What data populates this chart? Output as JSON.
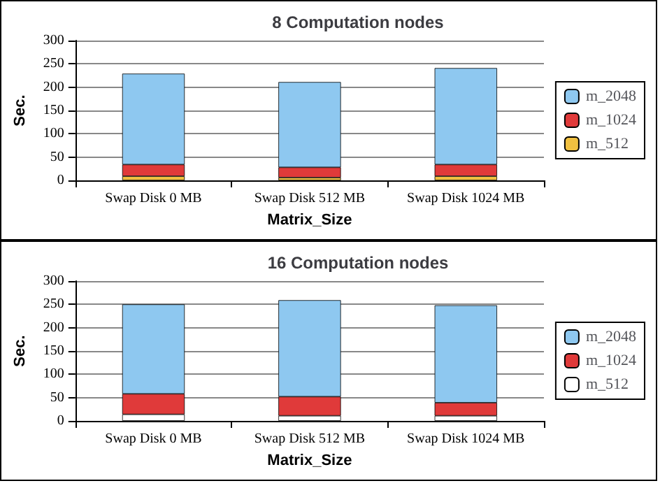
{
  "chart_data": [
    {
      "type": "bar",
      "title": "8 Computation nodes",
      "xlabel": "Matrix_Size",
      "ylabel": "Sec.",
      "categories": [
        "Swap Disk 0 MB",
        "Swap Disk 512 MB",
        "Swap Disk 1024 MB"
      ],
      "stacked": true,
      "ylim": [
        0,
        300
      ],
      "yticks": [
        0,
        50,
        100,
        150,
        200,
        250,
        300
      ],
      "grid": "y",
      "legend": "right",
      "series": [
        {
          "name": "m_512",
          "color": "#f0c040",
          "values": [
            9,
            6,
            9
          ]
        },
        {
          "name": "m_1024",
          "color": "#e03a3a",
          "values": [
            25,
            22,
            25
          ]
        },
        {
          "name": "m_2048",
          "color": "#8ec8f0",
          "values": [
            195,
            183,
            207
          ]
        }
      ]
    },
    {
      "type": "bar",
      "title": "16 Computation nodes",
      "xlabel": "Matrix_Size",
      "ylabel": "Sec.",
      "categories": [
        "Swap Disk 0 MB",
        "Swap Disk 512 MB",
        "Swap Disk 1024 MB"
      ],
      "stacked": true,
      "ylim": [
        0,
        300
      ],
      "yticks": [
        0,
        50,
        100,
        150,
        200,
        250,
        300
      ],
      "grid": "y",
      "legend": "right",
      "series": [
        {
          "name": "m_512",
          "color": "#ffffff",
          "values": [
            14,
            11,
            11
          ]
        },
        {
          "name": "m_1024",
          "color": "#e03a3a",
          "values": [
            44,
            41,
            28
          ]
        },
        {
          "name": "m_2048",
          "color": "#8ec8f0",
          "values": [
            192,
            207,
            209
          ]
        }
      ]
    }
  ]
}
